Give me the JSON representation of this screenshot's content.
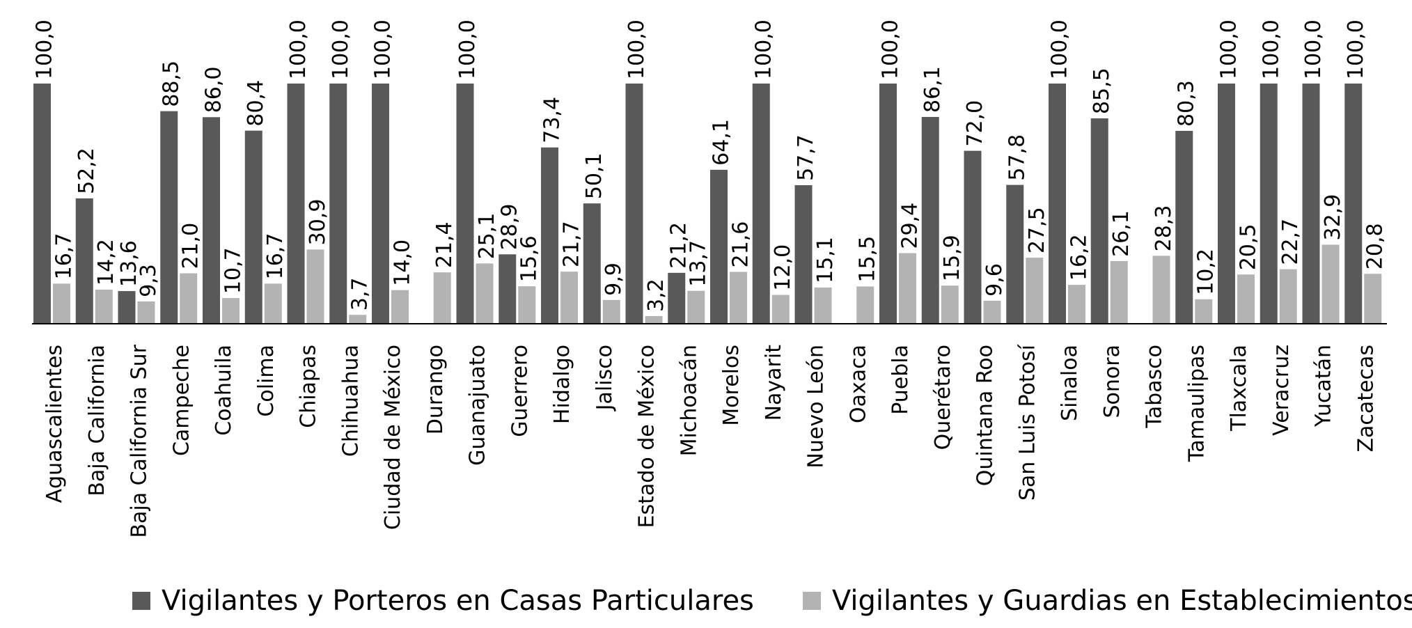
{
  "chart_data": {
    "type": "bar",
    "title": "",
    "xlabel": "",
    "ylabel": "",
    "ylim": [
      0,
      100
    ],
    "grid": false,
    "legend_position": "bottom",
    "decimal_separator": ",",
    "categories": [
      "Aguascalientes",
      "Baja California",
      "Baja California Sur",
      "Campeche",
      "Coahuila",
      "Colima",
      "Chiapas",
      "Chihuahua",
      "Ciudad de México",
      "Durango",
      "Guanajuato",
      "Guerrero",
      "Hidalgo",
      "Jalisco",
      "Estado de México",
      "Michoacán",
      "Morelos",
      "Nayarit",
      "Nuevo León",
      "Oaxaca",
      "Puebla",
      "Querétaro",
      "Quintana Roo",
      "San Luis Potosí",
      "Sinaloa",
      "Sonora",
      "Tabasco",
      "Tamaulipas",
      "Tlaxcala",
      "Veracruz",
      "Yucatán",
      "Zacatecas"
    ],
    "series": [
      {
        "name": "Vigilantes y Porteros en Casas Particulares",
        "color": "#595959",
        "values": [
          100.0,
          52.2,
          13.6,
          88.5,
          86.0,
          80.4,
          100.0,
          100.0,
          100.0,
          null,
          100.0,
          28.9,
          73.4,
          50.1,
          100.0,
          21.2,
          64.1,
          100.0,
          57.7,
          null,
          100.0,
          86.1,
          72.0,
          57.8,
          100.0,
          85.5,
          null,
          80.3,
          100.0,
          100.0,
          100.0,
          100.0
        ]
      },
      {
        "name": "Vigilantes y Guardias en Establecimientos",
        "color": "#b3b3b3",
        "values": [
          16.7,
          14.2,
          9.3,
          21.0,
          10.7,
          16.7,
          30.9,
          3.7,
          14.0,
          21.4,
          25.1,
          15.6,
          21.7,
          9.9,
          3.2,
          13.7,
          21.6,
          12.0,
          15.1,
          15.5,
          29.4,
          15.9,
          9.6,
          27.5,
          16.2,
          26.1,
          28.3,
          10.2,
          20.5,
          22.7,
          32.9,
          20.8
        ]
      }
    ]
  }
}
